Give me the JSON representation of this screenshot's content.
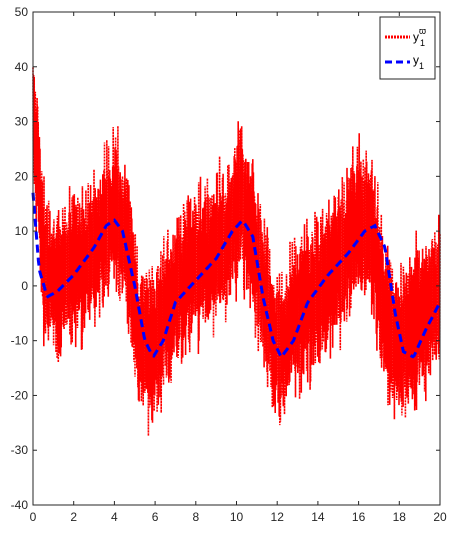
{
  "chart_data": {
    "type": "line",
    "title": "",
    "xlabel": "",
    "ylabel": "",
    "xlim": [
      0,
      20
    ],
    "ylim": [
      -40,
      50
    ],
    "x_ticks": [
      0,
      2,
      4,
      6,
      8,
      10,
      12,
      14,
      16,
      18,
      20
    ],
    "y_ticks": [
      -40,
      -30,
      -20,
      -10,
      0,
      10,
      20,
      30,
      40,
      50
    ],
    "x_tick_labels": [
      "0",
      "2",
      "4",
      "6",
      "8",
      "10",
      "12",
      "14",
      "16",
      "18",
      "20"
    ],
    "y_tick_labels": [
      "-40",
      "-30",
      "-20",
      "-10",
      "0",
      "10",
      "20",
      "30",
      "40",
      "50"
    ],
    "grid": false,
    "legend_position": "top-right",
    "series": [
      {
        "name": "y",
        "name_sub": "1",
        "name_sup": "ϖ",
        "color": "#ff0000",
        "style": "dotted",
        "noise_amplitude": 15,
        "x": [
          0,
          0.2,
          0.5,
          1,
          2,
          3,
          4,
          4.6,
          5.2,
          5.8,
          6.5,
          7.5,
          8.5,
          9.5,
          10.2,
          10.8,
          11.5,
          12.1,
          12.8,
          14,
          15,
          16,
          16.6,
          17.2,
          17.8,
          18.5,
          19.5,
          20
        ],
        "values": [
          30,
          25,
          5,
          0,
          3,
          6,
          14,
          8,
          -10,
          -12,
          -5,
          2,
          5,
          8,
          16,
          8,
          -5,
          -12,
          -6,
          -1,
          4,
          12,
          10,
          -3,
          -12,
          -8,
          -4,
          0
        ]
      },
      {
        "name": "y",
        "name_sub": "1",
        "color": "#0000ff",
        "style": "dashed",
        "x": [
          0,
          0.3,
          0.7,
          1.2,
          2,
          3,
          3.6,
          4,
          4.4,
          5,
          5.5,
          5.9,
          6.4,
          7,
          8,
          9,
          9.8,
          10.3,
          10.8,
          11.3,
          11.8,
          12.2,
          12.8,
          13.5,
          14.5,
          15.5,
          16.3,
          16.8,
          17.3,
          17.8,
          18.2,
          18.7,
          19.3,
          20
        ],
        "values": [
          17,
          3,
          -2,
          -1,
          2,
          7,
          11,
          12,
          10,
          0,
          -10,
          -13,
          -10,
          -3,
          1,
          5,
          10,
          12,
          9,
          -2,
          -10,
          -13,
          -10,
          -3,
          2,
          6,
          10,
          11,
          7,
          -5,
          -12,
          -13,
          -8,
          -3
        ]
      }
    ]
  }
}
